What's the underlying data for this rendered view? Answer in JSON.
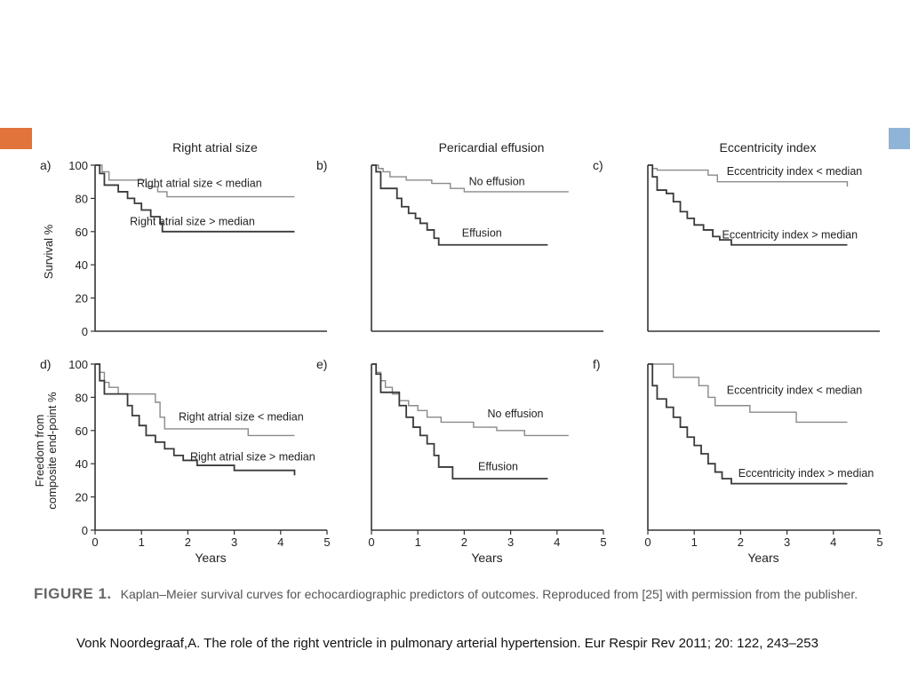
{
  "accents": {
    "left": "#e0743a",
    "right": "#8eb4d8"
  },
  "colors": {
    "lower_curve": "#3a3a3a",
    "upper_curve": "#8a8a8a",
    "axis": "#333333"
  },
  "chart_data": [
    {
      "type": "line",
      "panel_label": "a)",
      "title": "Right atrial size",
      "ylabel": "Survival %",
      "xlabel": "",
      "xlim": [
        0,
        5
      ],
      "ylim": [
        0,
        100
      ],
      "xticks": [],
      "yticks": [
        0,
        20,
        40,
        60,
        80,
        100
      ],
      "series": [
        {
          "name": "Right atrial size < median",
          "label_pos": [
            0.9,
            87
          ],
          "step": true,
          "x": [
            0,
            0.15,
            0.3,
            0.5,
            1.1,
            1.35,
            1.55,
            2.5,
            4.3
          ],
          "y": [
            100,
            96,
            91,
            91,
            87,
            84,
            81,
            81,
            81
          ]
        },
        {
          "name": "Right atrial size > median",
          "label_pos": [
            0.75,
            64
          ],
          "step": true,
          "x": [
            0,
            0.1,
            0.2,
            0.3,
            0.5,
            0.7,
            0.85,
            1.0,
            1.2,
            1.4,
            1.45,
            4.3
          ],
          "y": [
            100,
            95,
            88,
            88,
            84,
            80,
            77,
            73,
            69,
            65,
            60,
            60
          ]
        }
      ]
    },
    {
      "type": "line",
      "panel_label": "b)",
      "title": "Pericardial effusion",
      "ylabel": "",
      "xlabel": "",
      "xlim": [
        0,
        5
      ],
      "ylim": [
        0,
        100
      ],
      "xticks": [],
      "yticks": [],
      "series": [
        {
          "name": "No effusion",
          "label_pos": [
            2.1,
            88
          ],
          "step": true,
          "x": [
            0,
            0.15,
            0.25,
            0.4,
            0.75,
            1.2,
            1.3,
            1.7,
            2.0,
            4.25
          ],
          "y": [
            100,
            98,
            96,
            93,
            91,
            91,
            89,
            86,
            84,
            84
          ]
        },
        {
          "name": "Effusion",
          "label_pos": [
            1.95,
            57
          ],
          "step": true,
          "x": [
            0,
            0.1,
            0.2,
            0.4,
            0.55,
            0.65,
            0.8,
            0.95,
            1.05,
            1.2,
            1.35,
            1.45,
            3.8
          ],
          "y": [
            100,
            96,
            86,
            86,
            80,
            75,
            71,
            68,
            65,
            61,
            56,
            52,
            52
          ]
        }
      ]
    },
    {
      "type": "line",
      "panel_label": "c)",
      "title": "Eccentricity index",
      "ylabel": "",
      "xlabel": "",
      "xlim": [
        0,
        5
      ],
      "ylim": [
        0,
        100
      ],
      "xticks": [],
      "yticks": [],
      "series": [
        {
          "name": "Eccentricity index < median",
          "label_pos": [
            1.7,
            94
          ],
          "step": true,
          "x": [
            0,
            0.1,
            0.2,
            1.1,
            1.3,
            1.5,
            4.3
          ],
          "y": [
            100,
            98,
            97,
            97,
            94,
            90,
            87
          ]
        },
        {
          "name": "Eccentricity index > median",
          "label_pos": [
            1.6,
            56
          ],
          "step": true,
          "x": [
            0,
            0.1,
            0.2,
            0.4,
            0.55,
            0.7,
            0.85,
            1.0,
            1.2,
            1.4,
            1.55,
            1.8,
            4.3
          ],
          "y": [
            100,
            93,
            85,
            83,
            78,
            72,
            68,
            64,
            61,
            57,
            55,
            52,
            52
          ]
        }
      ]
    },
    {
      "type": "line",
      "panel_label": "d)",
      "title": "",
      "ylabel": "Freedom from composite end-point %",
      "xlabel": "Years",
      "xlim": [
        0,
        5
      ],
      "ylim": [
        0,
        100
      ],
      "xticks": [
        0,
        1,
        2,
        3,
        4,
        5
      ],
      "yticks": [
        0,
        20,
        40,
        60,
        80,
        100
      ],
      "series": [
        {
          "name": "Right atrial size < median",
          "label_pos": [
            1.8,
            66
          ],
          "step": true,
          "x": [
            0,
            0.1,
            0.2,
            0.3,
            0.5,
            1.1,
            1.3,
            1.4,
            1.5,
            3.3,
            4.3
          ],
          "y": [
            100,
            95,
            89,
            86,
            82,
            82,
            77,
            68,
            61,
            57,
            57
          ]
        },
        {
          "name": "Right atrial size > median",
          "label_pos": [
            2.05,
            42
          ],
          "step": true,
          "x": [
            0,
            0.1,
            0.2,
            0.5,
            0.7,
            0.8,
            0.95,
            1.1,
            1.3,
            1.5,
            1.7,
            1.9,
            2.2,
            3.0,
            4.3
          ],
          "y": [
            100,
            90,
            82,
            82,
            75,
            69,
            63,
            57,
            53,
            49,
            45,
            42,
            39,
            36,
            33
          ]
        }
      ]
    },
    {
      "type": "line",
      "panel_label": "e)",
      "title": "",
      "ylabel": "",
      "xlabel": "Years",
      "xlim": [
        0,
        5
      ],
      "ylim": [
        0,
        100
      ],
      "xticks": [
        0,
        1,
        2,
        3,
        4,
        5
      ],
      "yticks": [],
      "series": [
        {
          "name": "No effusion",
          "label_pos": [
            2.5,
            68
          ],
          "step": true,
          "x": [
            0,
            0.1,
            0.2,
            0.3,
            0.45,
            0.6,
            0.8,
            1.0,
            1.2,
            1.5,
            2.2,
            2.7,
            3.3,
            4.25
          ],
          "y": [
            100,
            95,
            90,
            86,
            82,
            78,
            75,
            72,
            68,
            65,
            62,
            60,
            57,
            57
          ]
        },
        {
          "name": "Effusion",
          "label_pos": [
            2.3,
            36
          ],
          "step": true,
          "x": [
            0,
            0.1,
            0.2,
            0.5,
            0.6,
            0.75,
            0.9,
            1.05,
            1.2,
            1.35,
            1.45,
            1.75,
            3.8
          ],
          "y": [
            100,
            94,
            83,
            83,
            75,
            68,
            62,
            57,
            52,
            45,
            38,
            31,
            31
          ]
        }
      ]
    },
    {
      "type": "line",
      "panel_label": "f)",
      "title": "",
      "ylabel": "",
      "xlabel": "Years",
      "xlim": [
        0,
        5
      ],
      "ylim": [
        0,
        100
      ],
      "xticks": [
        0,
        1,
        2,
        3,
        4,
        5
      ],
      "yticks": [],
      "series": [
        {
          "name": "Eccentricity index < median",
          "label_pos": [
            1.7,
            82
          ],
          "step": true,
          "x": [
            0,
            0.55,
            1.1,
            1.3,
            1.45,
            2.2,
            3.2,
            4.3
          ],
          "y": [
            100,
            92,
            87,
            80,
            75,
            71,
            65,
            65
          ]
        },
        {
          "name": "Eccentricity index > median",
          "label_pos": [
            1.95,
            32
          ],
          "step": true,
          "x": [
            0,
            0.1,
            0.2,
            0.4,
            0.55,
            0.7,
            0.85,
            1.0,
            1.15,
            1.3,
            1.45,
            1.6,
            1.8,
            4.3
          ],
          "y": [
            100,
            87,
            79,
            74,
            68,
            62,
            56,
            51,
            46,
            40,
            35,
            31,
            28,
            28
          ]
        }
      ]
    }
  ],
  "caption": {
    "label": "FIGURE 1.",
    "text": "Kaplan–Meier survival curves for echocardiographic predictors of outcomes. Reproduced from [25] with permission from the publisher."
  },
  "citation": "Vonk Noordegraaf,A. The role of the right ventricle in pulmonary arterial hypertension. Eur Respir Rev 2011; 20: 122, 243–253"
}
